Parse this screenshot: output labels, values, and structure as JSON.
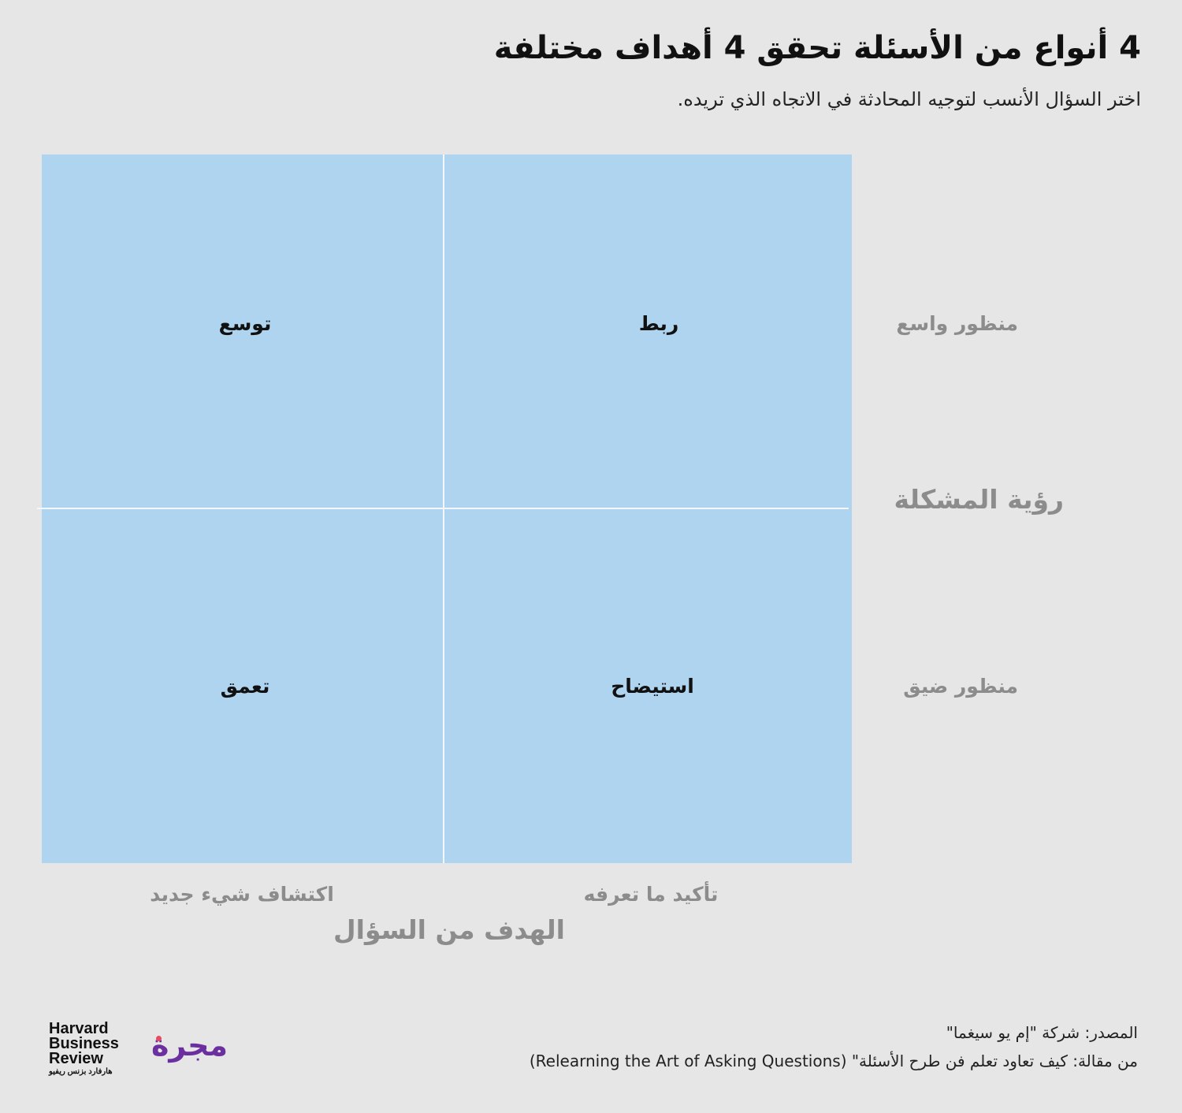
{
  "header": {
    "title": "4 أنواع من الأسئلة تحقق 4 أهداف مختلفة",
    "subtitle": "اختر السؤال الأنسب لتوجيه المحادثة في الاتجاه الذي تريده."
  },
  "matrix": {
    "cells": {
      "top_right": "ربط",
      "top_left": "توسع",
      "bottom_right": "استيضاح",
      "bottom_left": "تعمق"
    },
    "row_axis": {
      "title": "رؤية المشكلة",
      "top": "منظور واسع",
      "bottom": "منظور ضيق"
    },
    "col_axis": {
      "title": "الهدف من السؤال",
      "right": "تأكيد ما تعرفه",
      "left": "اكتشاف شيء جديد"
    },
    "colors": {
      "cell_fill": "#aed4f0",
      "axis_text": "#8c8c8c",
      "background": "#e6e6e6"
    }
  },
  "footer": {
    "source": "المصدر: شركة \"إم يو سيغما\"",
    "article": "من مقالة: كيف تعاود تعلم فن طرح الأسئلة\" (Relearning the Art of Asking Questions)",
    "hbr_line1": "Harvard",
    "hbr_line2": "Business",
    "hbr_line3": "Review",
    "hbr_arabic": "هارفارد بزنس ريفيو",
    "majarra": "مجرة",
    "majarra_color": "#6b2fa0"
  }
}
